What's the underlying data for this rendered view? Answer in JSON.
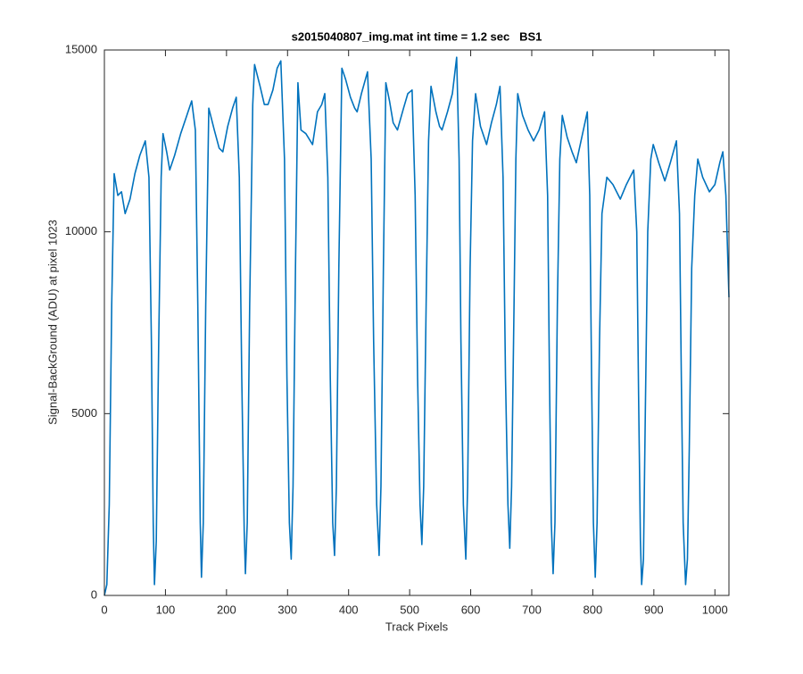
{
  "chart_data": {
    "type": "line",
    "title": "s2015040807_img.mat int time = 1.2 sec   BS1",
    "x_label": "Track Pixels",
    "y_label": "Signal-BackGround (ADU) at pixel 1023",
    "xlim": [
      0,
      1023
    ],
    "ylim": [
      0,
      15000
    ],
    "xticks": [
      0,
      100,
      200,
      300,
      400,
      500,
      600,
      700,
      800,
      900,
      1000
    ],
    "yticks": [
      0,
      5000,
      10000,
      15000
    ],
    "grid": false,
    "series": [
      {
        "color": "#0072bd",
        "x": [
          0,
          4,
          8,
          12,
          16,
          22,
          28,
          34,
          42,
          50,
          58,
          67,
          73,
          77,
          80,
          82,
          85,
          89,
          93,
          96,
          102,
          107,
          115,
          125,
          135,
          143,
          149,
          153,
          157,
          159,
          162,
          166,
          171,
          180,
          188,
          194,
          202,
          210,
          216,
          221,
          225,
          229,
          231,
          234,
          238,
          243,
          246,
          255,
          262,
          268,
          276,
          283,
          289,
          295,
          299,
          303,
          306,
          309,
          313,
          317,
          322,
          330,
          341,
          349,
          356,
          361,
          366,
          370,
          374,
          377,
          380,
          384,
          389,
          395,
          403,
          410,
          414,
          421,
          431,
          437,
          441,
          446,
          450,
          453,
          457,
          461,
          467,
          473,
          480,
          490,
          497,
          504,
          509,
          513,
          517,
          520,
          523,
          527,
          531,
          535,
          543,
          549,
          553,
          562,
          570,
          577,
          581,
          584,
          588,
          592,
          595,
          599,
          603,
          608,
          616,
          626,
          634,
          642,
          648,
          653,
          657,
          661,
          664,
          667,
          671,
          674,
          677,
          685,
          694,
          703,
          712,
          721,
          726,
          729,
          732,
          735,
          738,
          742,
          746,
          750,
          758,
          766,
          773,
          782,
          791,
          795,
          798,
          801,
          804,
          807,
          811,
          815,
          823,
          833,
          845,
          855,
          867,
          872,
          875,
          878,
          880,
          883,
          886,
          890,
          895,
          899,
          908,
          918,
          927,
          937,
          942,
          945,
          948,
          952,
          955,
          958,
          962,
          967,
          972,
          980,
          991,
          1000,
          1008,
          1013,
          1018,
          1023
        ],
        "values": [
          0,
          300,
          2500,
          8000,
          11600,
          11000,
          11100,
          10500,
          10900,
          11600,
          12100,
          12500,
          11500,
          7000,
          2000,
          300,
          1500,
          7000,
          11500,
          12700,
          12200,
          11700,
          12100,
          12700,
          13200,
          13600,
          12800,
          8000,
          2000,
          500,
          2000,
          8000,
          13400,
          12800,
          12300,
          12200,
          12900,
          13400,
          13700,
          11500,
          6000,
          1800,
          600,
          2000,
          8000,
          13500,
          14600,
          14000,
          13500,
          13500,
          13900,
          14500,
          14700,
          12000,
          6000,
          2000,
          1000,
          3000,
          9000,
          14100,
          12800,
          12700,
          12400,
          13300,
          13500,
          13800,
          11500,
          6000,
          2000,
          1100,
          3000,
          9000,
          14500,
          14200,
          13700,
          13400,
          13300,
          13800,
          14400,
          12000,
          7000,
          2500,
          1100,
          3000,
          9000,
          14100,
          13600,
          13000,
          12800,
          13400,
          13800,
          13900,
          11000,
          6000,
          2500,
          1400,
          3000,
          8000,
          12500,
          14000,
          13300,
          12900,
          12800,
          13300,
          13800,
          14800,
          12000,
          7000,
          2500,
          1000,
          3000,
          9000,
          12500,
          13800,
          12900,
          12400,
          13000,
          13500,
          14000,
          11500,
          6000,
          2500,
          1300,
          3000,
          8000,
          12000,
          13800,
          13200,
          12800,
          12500,
          12800,
          13300,
          11000,
          6000,
          2000,
          600,
          2000,
          8000,
          12000,
          13200,
          12600,
          12200,
          11900,
          12600,
          13300,
          11000,
          6000,
          2000,
          500,
          2000,
          7000,
          10500,
          11500,
          11300,
          10900,
          11300,
          11700,
          10000,
          5500,
          1500,
          300,
          1000,
          5000,
          10000,
          12000,
          12400,
          11900,
          11400,
          11900,
          12500,
          10500,
          6000,
          2000,
          300,
          1000,
          4000,
          9000,
          11000,
          12000,
          11500,
          11100,
          11300,
          11900,
          12200,
          11000,
          8200
        ]
      }
    ]
  }
}
